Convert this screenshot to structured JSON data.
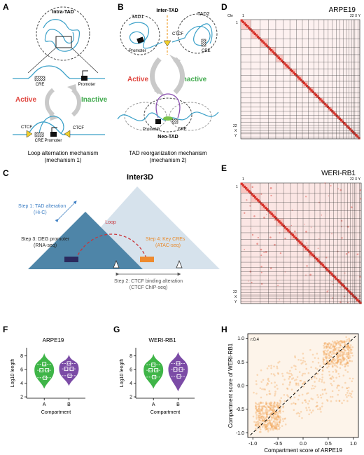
{
  "panels": {
    "A": {
      "letter": "A",
      "title": "Intra-TAD",
      "cre": "CRE",
      "promoter": "Promoter",
      "active": "Active",
      "inactive": "Inactive",
      "ctcf": "CTCF",
      "caption1": "Loop alternation mechanism",
      "caption2": "(mechanism 1)"
    },
    "B": {
      "letter": "B",
      "title": "Inter-TAD",
      "tad1": "TAD1",
      "tad2": "TAD2",
      "ctcf": "CTCF",
      "promoter": "Promoter",
      "cre": "CRE",
      "active": "Active",
      "inactive": "Inactive",
      "neotad": "Neo-TAD",
      "caption1": "TAD reorganization mechanism",
      "caption2": "(mechanism 2)"
    },
    "C": {
      "letter": "C",
      "title": "Inter3D",
      "step1a": "Step 1: TAD alteration",
      "step1b": "(Hi-C)",
      "loop": "Loop",
      "step3a": "Step 3: DEG promoter",
      "step3b": "(RNA-seq)",
      "step4a": "Step 4: Key CREs",
      "step4b": "(ATAC-seq)",
      "step2a": "Step 2: CTCF binding alteration",
      "step2b": "(CTCF ChIP-seq)"
    },
    "D": {
      "letter": "D",
      "title": "ARPE19",
      "chr": "Chr",
      "top_ticks": [
        "1",
        "22 X  Y"
      ],
      "left_ticks": [
        "1",
        "22",
        "X",
        "Y"
      ]
    },
    "E": {
      "letter": "E",
      "title": "WERI-RB1",
      "top_ticks": [
        "1",
        "22 X  Y"
      ],
      "left_ticks": [
        "1",
        "22",
        "X",
        "Y"
      ]
    },
    "F": {
      "letter": "F",
      "title": "ARPE19"
    },
    "G": {
      "letter": "G",
      "title": "WERI-RB1"
    },
    "H": {
      "letter": "H",
      "r_label": "r:0.4"
    }
  },
  "chart_data": [
    {
      "type": "violin",
      "title": "ARPE19",
      "xlabel": "Compartment",
      "ylabel": "Log10 length",
      "categories": [
        "A",
        "B"
      ],
      "yticks": [
        2,
        4,
        6,
        8
      ],
      "ylim": [
        1.8,
        9.2
      ],
      "series": [
        {
          "name": "A",
          "color": "#3fb548",
          "min": 3.2,
          "max": 8.4,
          "q1": 4.8,
          "median": 5.9,
          "q3": 6.8
        },
        {
          "name": "B",
          "color": "#7b4ba6",
          "min": 3.6,
          "max": 8.2,
          "q1": 5.1,
          "median": 6.1,
          "q3": 6.9
        }
      ]
    },
    {
      "type": "violin",
      "title": "WERI-RB1",
      "xlabel": "Compartment",
      "ylabel": "Log10 length",
      "categories": [
        "A",
        "B"
      ],
      "yticks": [
        2,
        4,
        6,
        8
      ],
      "ylim": [
        1.8,
        9.2
      ],
      "series": [
        {
          "name": "A",
          "color": "#3fb548",
          "min": 3.2,
          "max": 8.3,
          "q1": 4.9,
          "median": 5.9,
          "q3": 6.7
        },
        {
          "name": "B",
          "color": "#7b4ba6",
          "min": 2.8,
          "max": 8.6,
          "q1": 5.0,
          "median": 6.0,
          "q3": 6.9
        }
      ]
    },
    {
      "type": "scatter",
      "xlabel": "Compartment score of ARPE19",
      "ylabel": "Compartment score of WERI-RB1",
      "xticks": [
        -1.0,
        -0.5,
        0.0,
        0.5,
        1.0
      ],
      "yticks": [
        -1.0,
        -0.5,
        0.0,
        0.5,
        1.0
      ],
      "xlim": [
        -1.1,
        1.1
      ],
      "ylim": [
        -1.1,
        1.1
      ],
      "annotation": "r:0.4",
      "diagonal": true,
      "color": "#f0a050"
    }
  ]
}
